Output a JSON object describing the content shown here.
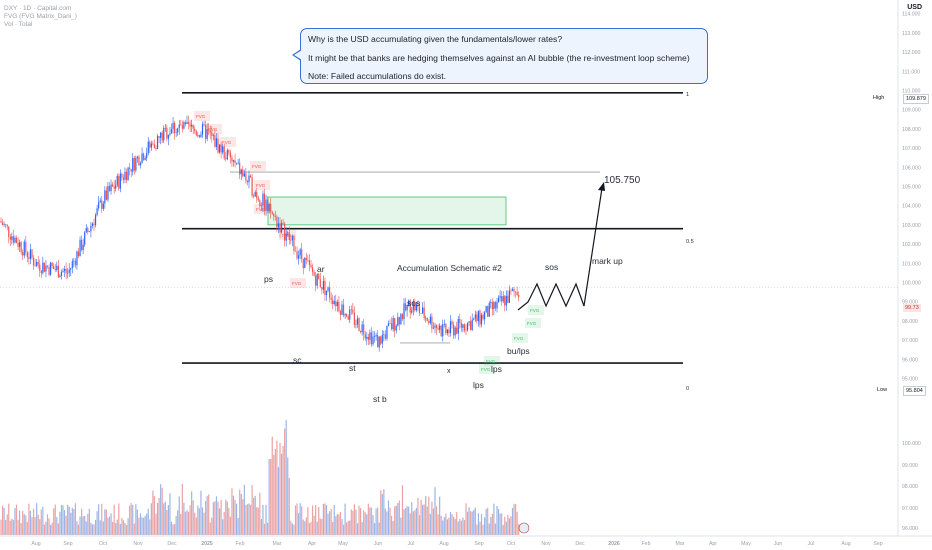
{
  "header": {
    "symbol_line": "DXY · 1D · Capital.com",
    "indicator_line": "FVG (FVG Matrix_Dani_)",
    "volume_line": "Vol · Total"
  },
  "currency": "USD",
  "note": {
    "line1": "Why is the USD accumulating given the fundamentals/lower rates?",
    "line2": "It might be that banks are hedging themselves against an AI bubble (the re-investment loop scheme)",
    "line3": "Note: Failed accumulations do exist."
  },
  "annotations": {
    "target_price": "105.750",
    "schematic": "Accumulation Schematic #2",
    "ps": "ps",
    "sc": "sc",
    "ar": "ar",
    "st": "st",
    "st_b": "st b",
    "sos_mid": "sos",
    "sos_right": "sos",
    "bu_lps": "bu/lps",
    "lps1": "lps",
    "lps2": "lps",
    "mark_up": "mark up",
    "x_mark": "x",
    "fib_1": "1",
    "fib_05": "0.5",
    "fib_0": "0"
  },
  "price_tags": {
    "high_label": "High",
    "high_value": "109.879",
    "low_label": "Low",
    "low_value": "95.804",
    "current": "99.73"
  },
  "fvg_label": "FVG",
  "colors": {
    "up": "#2962ff",
    "down": "#ef5350",
    "vol_up": "#9db5e6",
    "vol_down": "#eba3a3",
    "zone": "#3ec06a"
  },
  "chart_data": {
    "type": "candlestick",
    "timeframe": "1D",
    "ylim": [
      94.6,
      114.4
    ],
    "y_ticks": [
      95.0,
      96.0,
      97.0,
      98.0,
      99.0,
      100.0,
      101.0,
      102.0,
      103.0,
      104.0,
      105.0,
      106.0,
      107.0,
      108.0,
      109.0,
      110.0,
      111.0,
      112.0,
      113.0,
      114.0
    ],
    "x_ticks": [
      "Aug",
      "Sep",
      "Oct",
      "Nov",
      "Dec",
      "2025",
      "Feb",
      "Mar",
      "Apr",
      "May",
      "Jun",
      "Jul",
      "Aug",
      "Sep",
      "Oct",
      "Nov",
      "Dec",
      "2026",
      "Feb",
      "Mar",
      "Apr",
      "May",
      "Jun",
      "Jul",
      "Aug",
      "Sep",
      "Oct"
    ],
    "close_path": [
      [
        "Aug",
        103.2
      ],
      [
        "Sep",
        101.0
      ],
      [
        "Oct",
        100.5
      ],
      [
        "Nov",
        104.3
      ],
      [
        "Dec",
        106.5
      ],
      [
        "2025",
        108.1
      ],
      [
        "Feb",
        107.8
      ],
      [
        "Mar",
        105.8
      ],
      [
        "Apr",
        103.2
      ],
      [
        "May",
        100.5
      ],
      [
        "Jun",
        98.6
      ],
      [
        "Jul",
        96.9
      ],
      [
        "Aug",
        98.9
      ],
      [
        "Sep",
        97.4
      ],
      [
        "Oct",
        98.1
      ],
      [
        "Nov",
        99.7
      ]
    ],
    "levels": [
      {
        "label": "1",
        "value": 109.879
      },
      {
        "label": "0.5",
        "value": 102.8
      },
      {
        "label": "0",
        "value": 95.804
      }
    ],
    "target": 105.75,
    "volume_note": "volume bars shown in lower pane, red = down day, blue = up day"
  }
}
